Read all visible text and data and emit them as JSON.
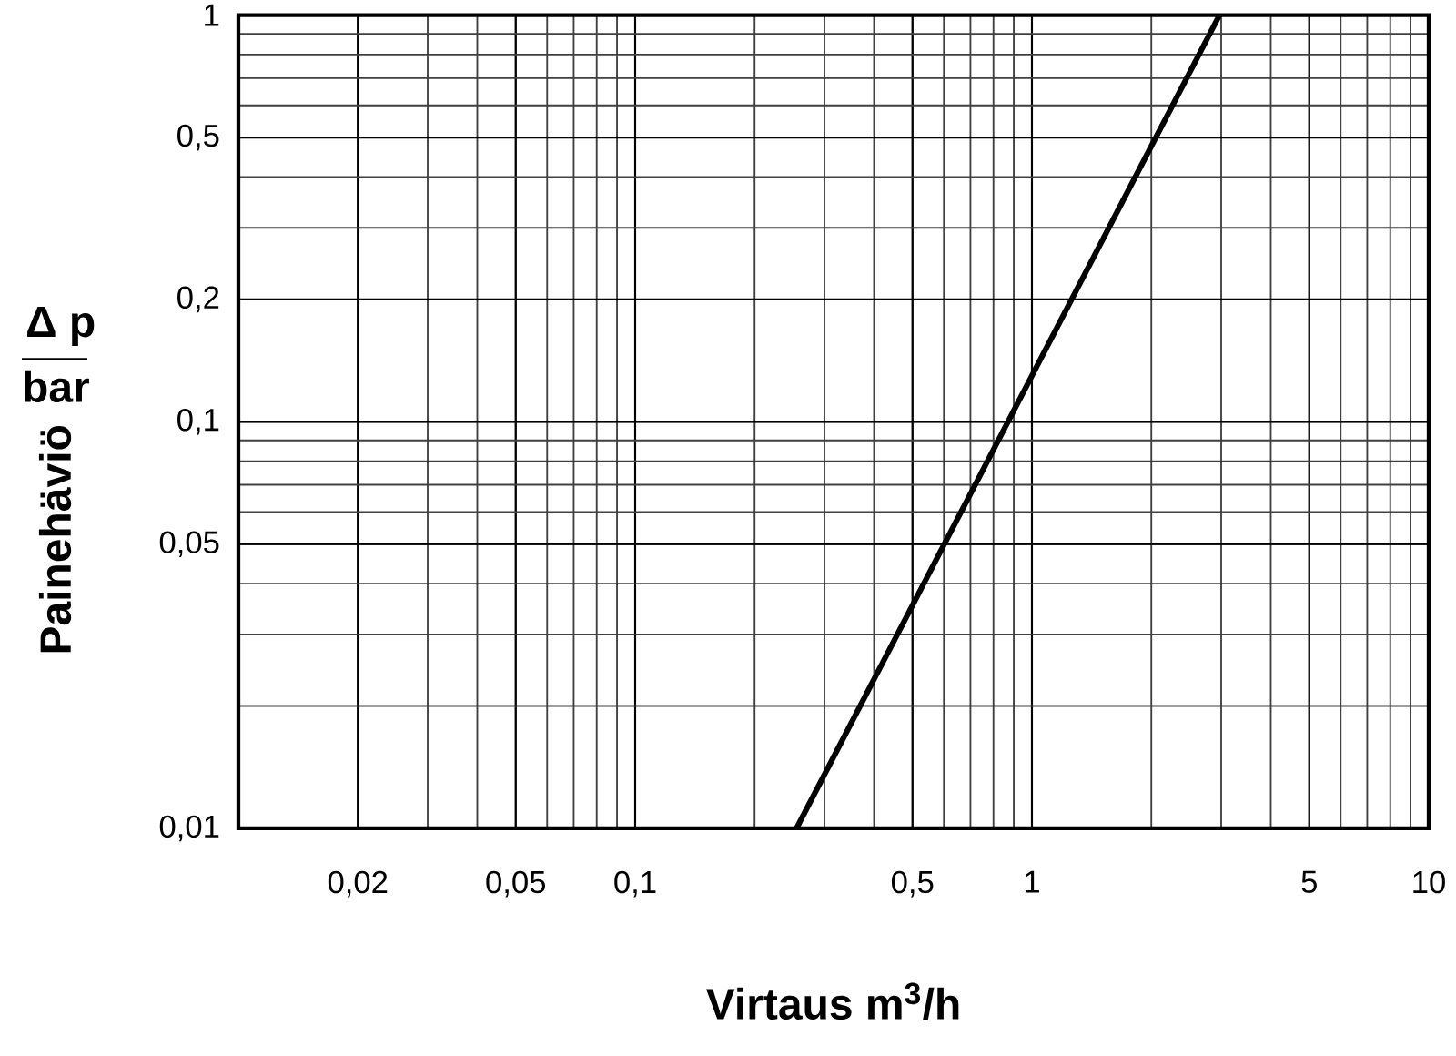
{
  "chart_data": {
    "type": "line",
    "xlabel": "Virtaus m$^{3}$/h",
    "ylabel": "Painehäviö",
    "annotations": [
      "Δ p",
      "bar"
    ],
    "log": "xy",
    "grid": true,
    "marker": "none",
    "line_style": "solid",
    "xlim": [
      0.01,
      10
    ],
    "ylim": [
      0.01,
      1
    ],
    "xticks": [
      {
        "value": 0.02,
        "label": "0,02"
      },
      {
        "value": 0.05,
        "label": "0,05"
      },
      {
        "value": 0.1,
        "label": "0,1"
      },
      {
        "value": 0.5,
        "label": "0,5"
      },
      1,
      5,
      10
    ],
    "yticks": [
      {
        "value": 0.01,
        "label": "0,01"
      },
      {
        "value": 0.05,
        "label": "0,05"
      },
      {
        "value": 0.1,
        "label": "0,1"
      },
      {
        "value": 0.2,
        "label": "0,2"
      },
      {
        "value": 0.5,
        "label": "0,5"
      },
      1
    ],
    "series": [
      {
        "color": "#000000",
        "x": [
          0.255,
          2.97
        ],
        "values": [
          0.01,
          1
        ]
      }
    ]
  }
}
